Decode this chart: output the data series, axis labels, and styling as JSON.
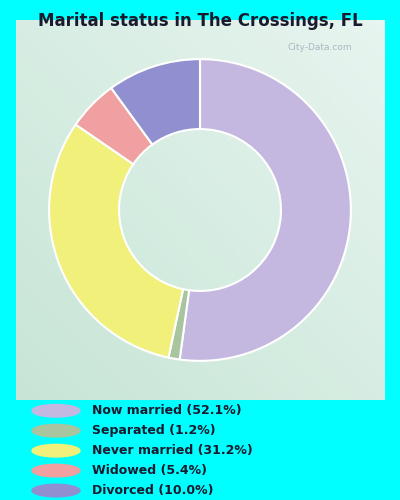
{
  "title": "Marital status in The Crossings, FL",
  "background_outer": "#00ffff",
  "slices": [
    {
      "label": "Now married (52.1%)",
      "value": 52.1,
      "color": "#c5b8e0"
    },
    {
      "label": "Separated (1.2%)",
      "value": 1.2,
      "color": "#a8c5a0"
    },
    {
      "label": "Never married (31.2%)",
      "value": 31.2,
      "color": "#f0f07a"
    },
    {
      "label": "Widowed (5.4%)",
      "value": 5.4,
      "color": "#f0a0a0"
    },
    {
      "label": "Divorced (10.0%)",
      "value": 10.0,
      "color": "#9090d0"
    }
  ],
  "legend_colors": [
    "#c5b8e0",
    "#a8c5a0",
    "#f0f07a",
    "#f0a0a0",
    "#9090d0"
  ],
  "legend_labels": [
    "Now married (52.1%)",
    "Separated (1.2%)",
    "Never married (31.2%)",
    "Widowed (5.4%)",
    "Divorced (10.0%)"
  ],
  "title_fontsize": 12,
  "title_color": "#1a1a2e",
  "start_angle": 90,
  "chart_bg_top": "#e8f5ee",
  "chart_bg_bottom": "#c8e8d8",
  "watermark": "City-Data.com"
}
